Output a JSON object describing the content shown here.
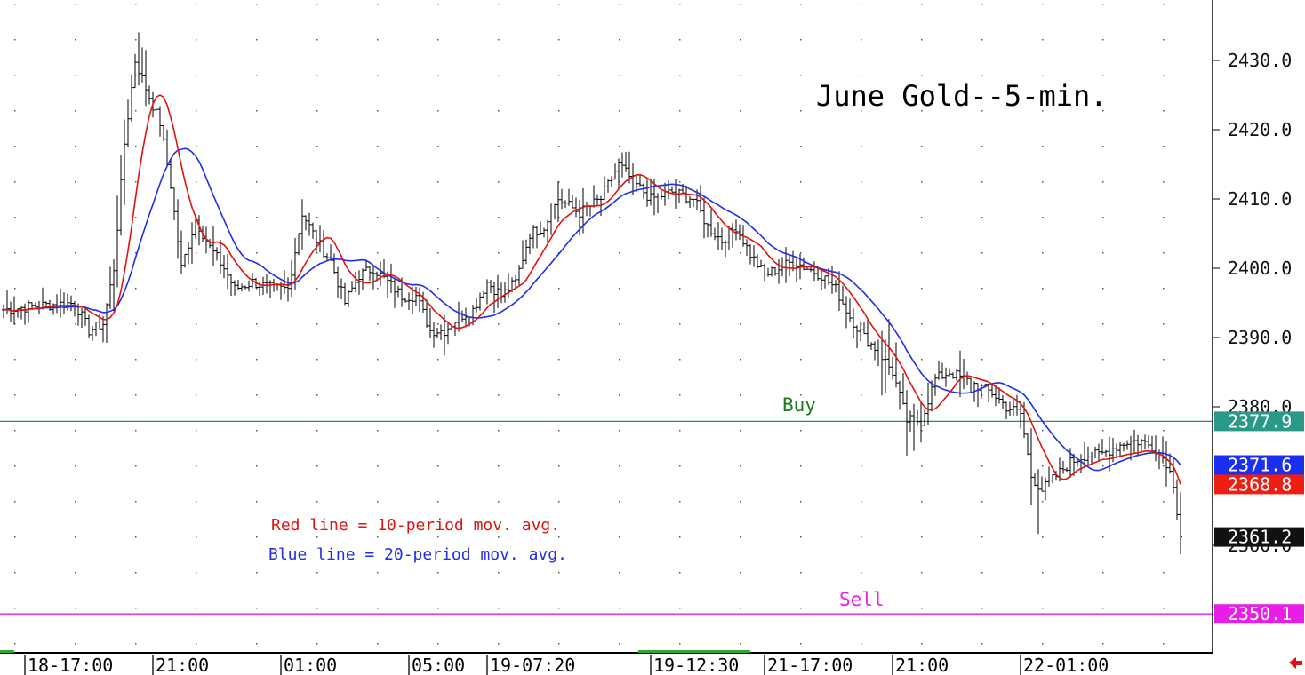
{
  "chart_data": {
    "type": "ohlc-bar",
    "title": "June Gold--5-min.",
    "ylim": [
      2346,
      2438
    ],
    "y_ticks": [
      "2430.0",
      "2420.0",
      "2410.0",
      "2400.0",
      "2390.0",
      "2380.0",
      "2360.0"
    ],
    "y_tick_values": [
      2430,
      2420,
      2410,
      2400,
      2390,
      2380,
      2360
    ],
    "x_labels": [
      "18-17:00",
      "21:00",
      "01:00",
      "05:00",
      "19-07:20",
      "19-12:30",
      "21-17:00",
      "21:00",
      "22-01:00"
    ],
    "x_label_bar_index": [
      4,
      40,
      76,
      112,
      134,
      180,
      212,
      248,
      284
    ],
    "bar_count": 332,
    "close_keypoints": [
      [
        0,
        2394
      ],
      [
        8,
        2394.5
      ],
      [
        20,
        2395
      ],
      [
        24,
        2391
      ],
      [
        28,
        2392
      ],
      [
        31,
        2400
      ],
      [
        34,
        2418
      ],
      [
        37,
        2430
      ],
      [
        40,
        2426
      ],
      [
        44,
        2421
      ],
      [
        47,
        2412
      ],
      [
        50,
        2400
      ],
      [
        54,
        2407
      ],
      [
        58,
        2403
      ],
      [
        62,
        2400
      ],
      [
        65,
        2397
      ],
      [
        70,
        2398
      ],
      [
        76,
        2397
      ],
      [
        80,
        2397
      ],
      [
        84,
        2408
      ],
      [
        88,
        2404
      ],
      [
        92,
        2401
      ],
      [
        96,
        2395
      ],
      [
        100,
        2399
      ],
      [
        104,
        2400
      ],
      [
        108,
        2398
      ],
      [
        112,
        2396
      ],
      [
        116,
        2396
      ],
      [
        120,
        2391
      ],
      [
        124,
        2391
      ],
      [
        128,
        2393
      ],
      [
        132,
        2394
      ],
      [
        136,
        2398
      ],
      [
        140,
        2396
      ],
      [
        144,
        2398
      ],
      [
        148,
        2405
      ],
      [
        152,
        2406
      ],
      [
        156,
        2410
      ],
      [
        162,
        2408
      ],
      [
        168,
        2410
      ],
      [
        173,
        2415
      ],
      [
        178,
        2412
      ],
      [
        182,
        2410
      ],
      [
        188,
        2411
      ],
      [
        194,
        2410
      ],
      [
        198,
        2406
      ],
      [
        202,
        2404
      ],
      [
        206,
        2406
      ],
      [
        210,
        2402
      ],
      [
        214,
        2399
      ],
      [
        218,
        2400
      ],
      [
        222,
        2401
      ],
      [
        226,
        2400
      ],
      [
        230,
        2399
      ],
      [
        234,
        2397
      ],
      [
        238,
        2393
      ],
      [
        242,
        2390
      ],
      [
        246,
        2388
      ],
      [
        250,
        2385
      ],
      [
        254,
        2378
      ],
      [
        258,
        2378
      ],
      [
        262,
        2384
      ],
      [
        266,
        2385
      ],
      [
        270,
        2384
      ],
      [
        274,
        2383
      ],
      [
        278,
        2382
      ],
      [
        282,
        2380
      ],
      [
        286,
        2379
      ],
      [
        289,
        2370
      ],
      [
        292,
        2368
      ],
      [
        296,
        2370
      ],
      [
        300,
        2372
      ],
      [
        304,
        2373
      ],
      [
        308,
        2373
      ],
      [
        312,
        2374
      ],
      [
        316,
        2375
      ],
      [
        320,
        2375
      ],
      [
        324,
        2374
      ],
      [
        327,
        2372
      ],
      [
        329,
        2369
      ],
      [
        331,
        2361.2
      ]
    ],
    "series": [
      {
        "name": "Red line = 10-period mov. avg.",
        "color": "#e0140f",
        "last": "2368.8"
      },
      {
        "name": "Blue line = 20-period mov. avg.",
        "color": "#1f2fe8",
        "last": "2371.6"
      }
    ],
    "last_price": "2361.2",
    "levels": [
      {
        "label": "Buy",
        "price": 2377.9,
        "price_label": "2377.9",
        "color": "#1f8f7a",
        "label_color": "#1c7a1c",
        "tag_color": "#2a9a88"
      },
      {
        "label": "Sell",
        "price": 2350.1,
        "price_label": "2350.1",
        "color": "#e81ee8",
        "label_color": "#e81ee8",
        "tag_color": "#e81ee8"
      }
    ],
    "colors": {
      "bars": "#000000",
      "last_tag": "#111111",
      "red_tag": "#f01e12",
      "blue_tag": "#1a2ff0"
    }
  }
}
